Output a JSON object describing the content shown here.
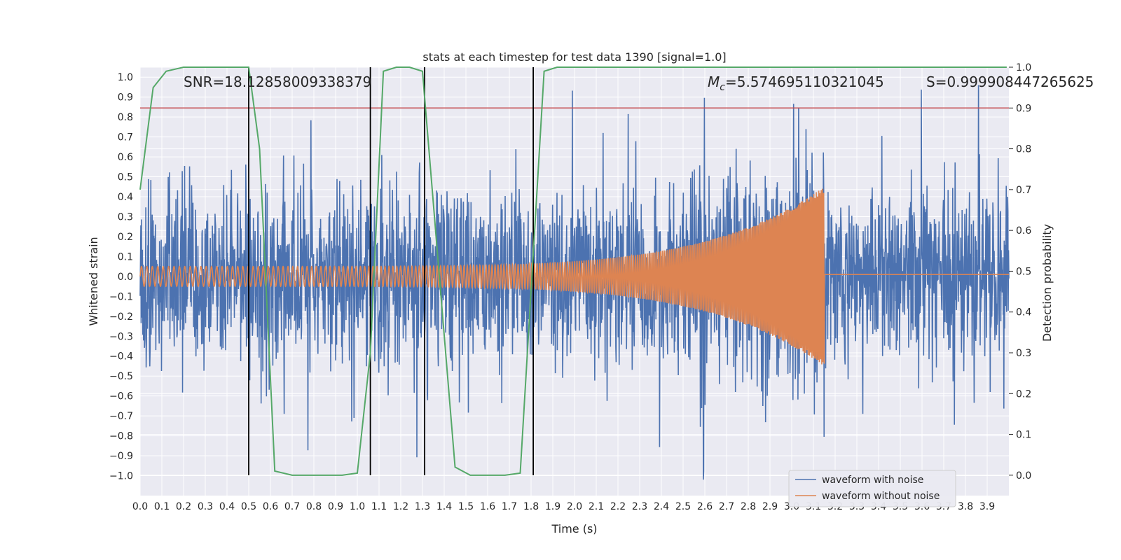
{
  "chart_data": {
    "type": "line",
    "title": "stats at each timestep for test data 1390 [signal=1.0]",
    "xlabel": "Time (s)",
    "ylabel": "Whitened strain",
    "y2label": "Detection probability",
    "xlim": [
      0.0,
      4.0
    ],
    "ylim": [
      -1.1,
      1.05
    ],
    "y2lim": [
      -0.05,
      1.0
    ],
    "x_ticks": [
      "0.0",
      "0.1",
      "0.2",
      "0.3",
      "0.4",
      "0.5",
      "0.6",
      "0.7",
      "0.8",
      "0.9",
      "1.0",
      "1.1",
      "1.2",
      "1.3",
      "1.4",
      "1.5",
      "1.6",
      "1.7",
      "1.8",
      "1.9",
      "2.0",
      "2.1",
      "2.2",
      "2.3",
      "2.4",
      "2.5",
      "2.6",
      "2.7",
      "2.8",
      "2.9",
      "3.0",
      "3.1",
      "3.2",
      "3.3",
      "3.4",
      "3.5",
      "3.6",
      "3.7",
      "3.8",
      "3.9"
    ],
    "y_ticks": [
      "−1.0",
      "−0.9",
      "−0.8",
      "−0.7",
      "−0.6",
      "−0.5",
      "−0.4",
      "−0.3",
      "−0.2",
      "−0.1",
      "0.0",
      "0.1",
      "0.2",
      "0.3",
      "0.4",
      "0.5",
      "0.6",
      "0.7",
      "0.8",
      "0.9",
      "1.0"
    ],
    "y2_ticks": [
      "0.0",
      "0.1",
      "0.2",
      "0.3",
      "0.4",
      "0.5",
      "0.6",
      "0.7",
      "0.8",
      "0.9",
      "1.0"
    ],
    "grid": true,
    "legend_position": "lower-right",
    "annotations": {
      "snr": "SNR=18.12858009338379",
      "mc_symbol": "M",
      "mc_sub": "c",
      "mc_value": "=5.574695110321045",
      "s_value": "S=0.999908447265625"
    },
    "series": [
      {
        "name": "waveform with noise",
        "color": "#4c72b0",
        "description_values": {
          "noise_std": 0.22,
          "spike_max": 0.96,
          "spike_min": -1.02
        }
      },
      {
        "name": "waveform without noise",
        "color": "#dd8452",
        "chirp": {
          "start_amp": 0.05,
          "peak_amp": 0.45,
          "merger_time": 3.15,
          "start_freq_hz": 40,
          "end_freq_hz": 180
        }
      }
    ],
    "detection_probability": {
      "color": "#55a868",
      "x": [
        0.0,
        0.06,
        0.12,
        0.2,
        0.5,
        0.55,
        0.62,
        0.7,
        0.93,
        1.0,
        1.06,
        1.12,
        1.18,
        1.24,
        1.3,
        1.45,
        1.52,
        1.65,
        1.68,
        1.75,
        1.86,
        1.92,
        2.5,
        3.0,
        3.5,
        3.99
      ],
      "y": [
        0.7,
        0.95,
        0.99,
        1.0,
        1.0,
        0.8,
        0.01,
        0.0,
        0.0,
        0.005,
        0.3,
        0.99,
        1.0,
        1.0,
        0.99,
        0.02,
        0.0,
        0.0,
        0.0,
        0.005,
        0.99,
        1.0,
        1.0,
        1.0,
        1.0,
        1.0
      ]
    },
    "threshold": {
      "value": 0.9,
      "color": "#c44e52"
    },
    "event_lines": {
      "x": [
        0.5,
        1.06,
        1.31,
        1.81
      ],
      "color": "#000000"
    }
  }
}
